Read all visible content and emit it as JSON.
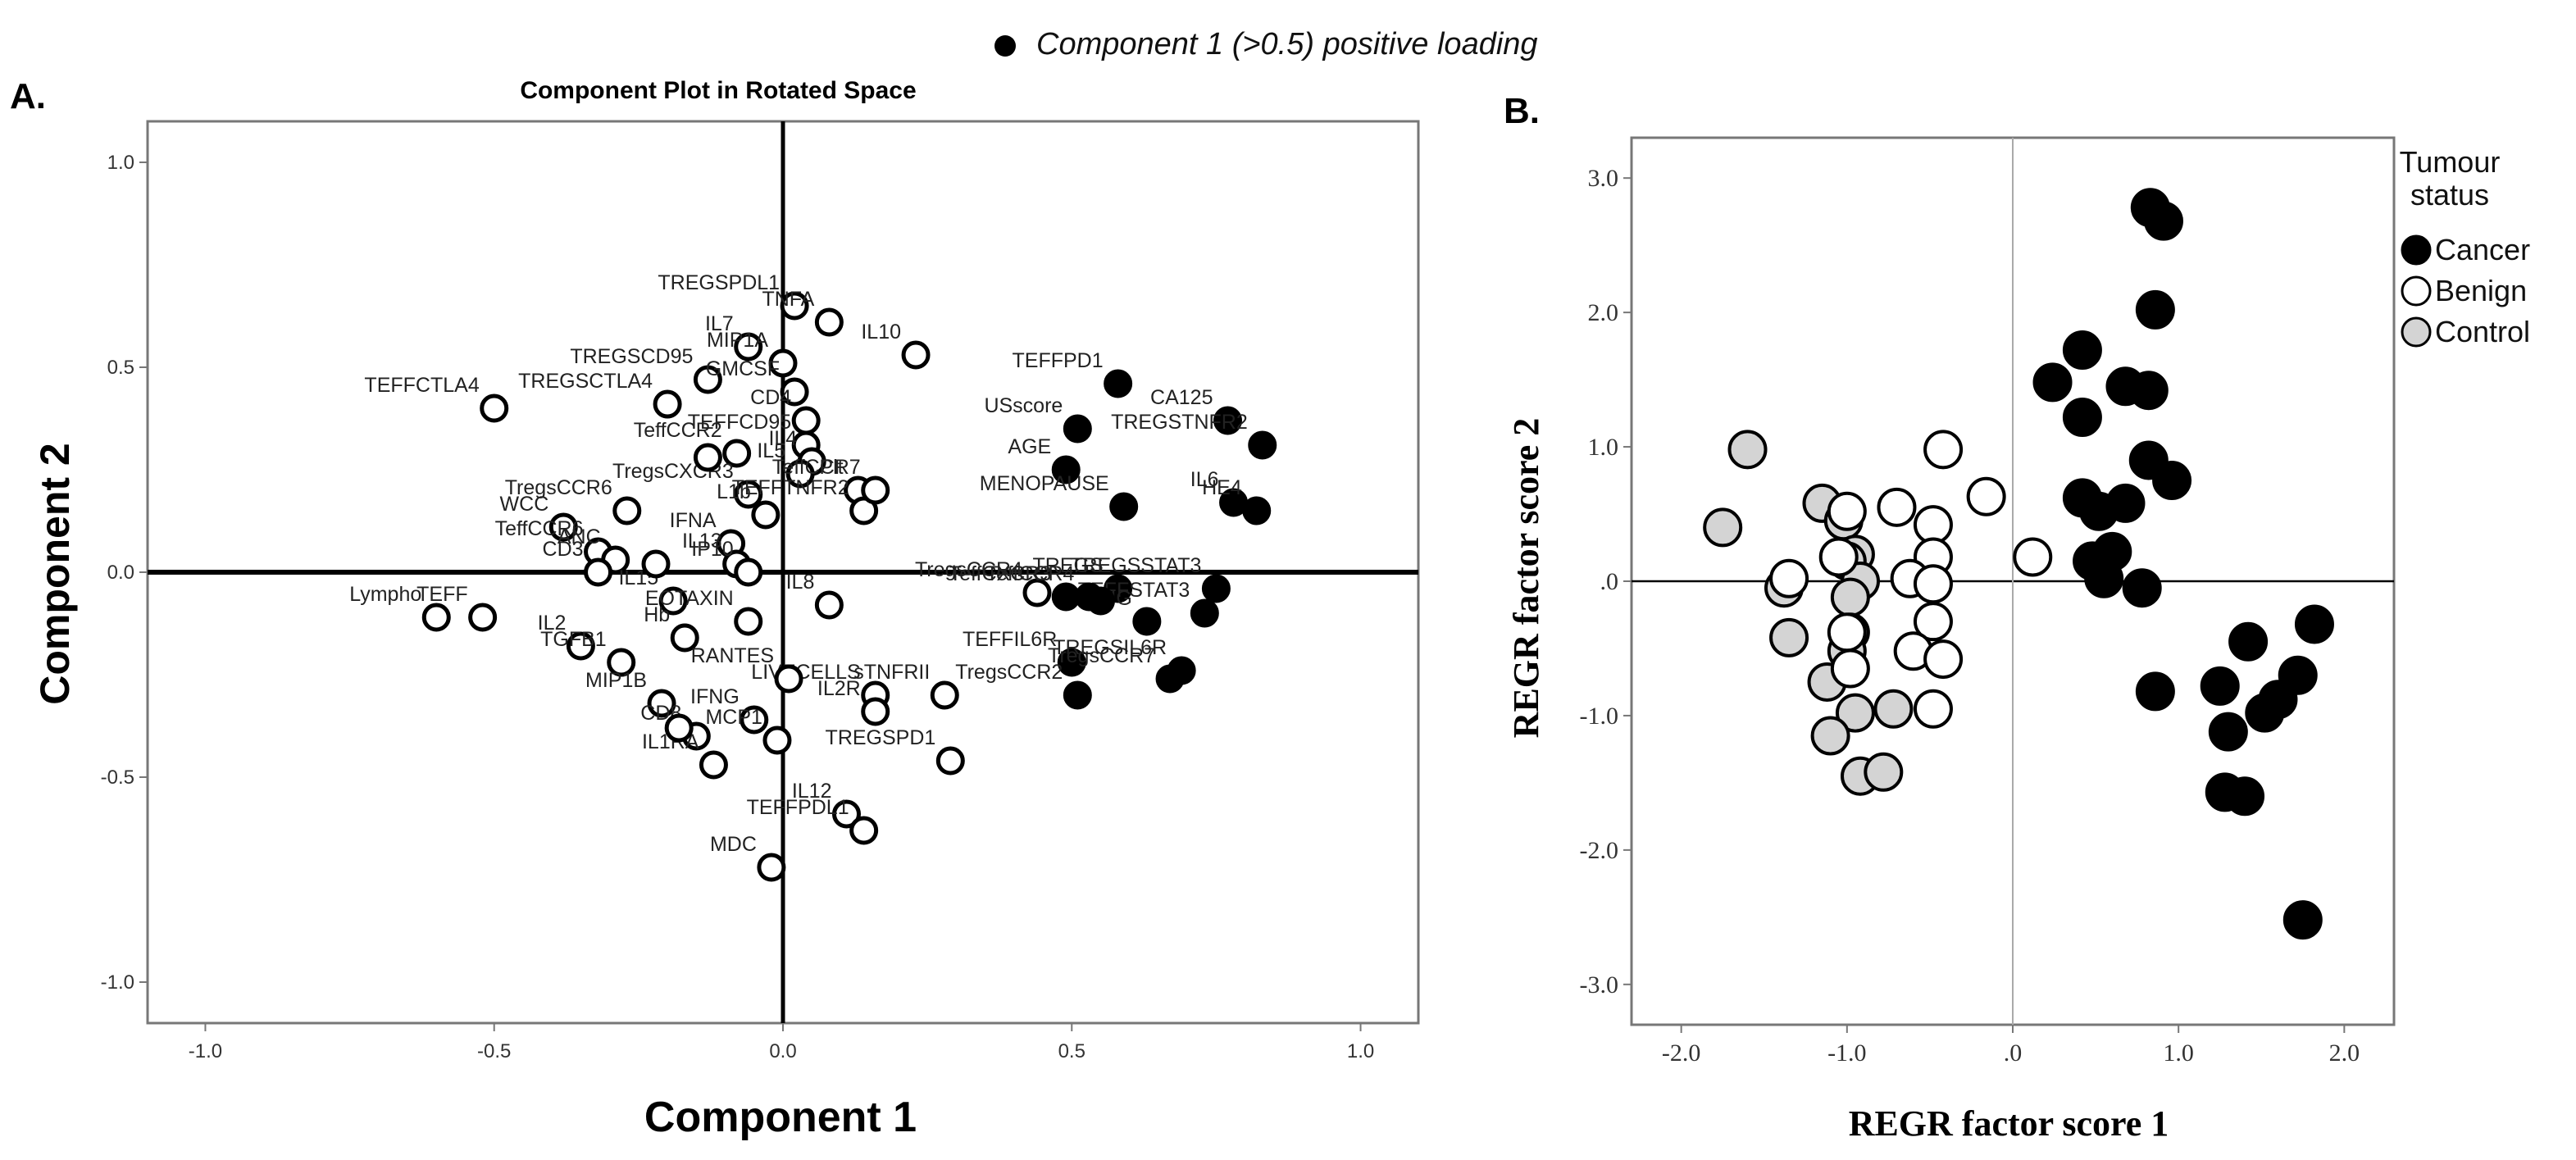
{
  "legend_top": {
    "text": "Component 1  (>0.5) positive loading"
  },
  "chart_data": [
    {
      "type": "scatter",
      "panel_label": "A.",
      "title": "Component Plot in Rotated Space",
      "xlabel": "Component 1",
      "ylabel": "Component 2",
      "xlim": [
        -1.1,
        1.1
      ],
      "ylim": [
        -1.1,
        1.1
      ],
      "xticks": [
        -1.0,
        -0.5,
        0.0,
        0.5,
        1.0
      ],
      "xtick_labels": [
        "-1.0",
        "-0.5",
        "0.0",
        "0.5",
        "1.0"
      ],
      "yticks": [
        -1.0,
        -0.5,
        0.0,
        0.5,
        1.0
      ],
      "ytick_labels": [
        "-1.0",
        "-0.5",
        "0.0",
        "0.5",
        "1.0"
      ],
      "points": [
        {
          "label": "TREGSPDL1",
          "x": 0.02,
          "y": 0.65,
          "filled": false
        },
        {
          "label": "TNFA",
          "x": 0.08,
          "y": 0.61,
          "filled": false
        },
        {
          "label": "IL10",
          "x": 0.23,
          "y": 0.53,
          "filled": false
        },
        {
          "label": "IL7",
          "x": -0.06,
          "y": 0.55,
          "filled": false
        },
        {
          "label": "MIP1A",
          "x": 0.0,
          "y": 0.51,
          "filled": false
        },
        {
          "label": "TREGSCD95",
          "x": -0.13,
          "y": 0.47,
          "filled": false
        },
        {
          "label": "GMCSF",
          "x": 0.02,
          "y": 0.44,
          "filled": false
        },
        {
          "label": "TEFFCTLA4",
          "x": -0.5,
          "y": 0.4,
          "filled": false
        },
        {
          "label": "TREGSCTLA4",
          "x": -0.2,
          "y": 0.41,
          "filled": false
        },
        {
          "label": "CD4",
          "x": 0.04,
          "y": 0.37,
          "filled": false
        },
        {
          "label": "TEFFCD95",
          "x": 0.04,
          "y": 0.31,
          "filled": false
        },
        {
          "label": "TeffCCR2",
          "x": -0.08,
          "y": 0.29,
          "filled": false
        },
        {
          "label": "IL4",
          "x": 0.05,
          "y": 0.27,
          "filled": false
        },
        {
          "label": "IL5",
          "x": 0.03,
          "y": 0.24,
          "filled": false
        },
        {
          "label": "Plt",
          "x": 0.13,
          "y": 0.2,
          "filled": false
        },
        {
          "label": "TregsCXCR3",
          "x": -0.06,
          "y": 0.19,
          "filled": false
        },
        {
          "label": "TregsCCR6",
          "x": -0.27,
          "y": 0.15,
          "filled": false
        },
        {
          "label": "L1b",
          "x": -0.03,
          "y": 0.14,
          "filled": false
        },
        {
          "label": "TEFFTNFR2",
          "x": 0.14,
          "y": 0.15,
          "filled": false
        },
        {
          "label": "TeffCCR7",
          "x": 0.16,
          "y": 0.2,
          "filled": false
        },
        {
          "label": "WCC",
          "x": -0.38,
          "y": 0.11,
          "filled": false
        },
        {
          "label": "IFNA",
          "x": -0.09,
          "y": 0.07,
          "filled": false
        },
        {
          "label": "TeffCCR6",
          "x": -0.32,
          "y": 0.05,
          "filled": false
        },
        {
          "label": "ANC",
          "x": -0.29,
          "y": 0.03,
          "filled": false
        },
        {
          "label": "IL13",
          "x": -0.08,
          "y": 0.02,
          "filled": false
        },
        {
          "label": "IP10",
          "x": -0.06,
          "y": 0.0,
          "filled": false
        },
        {
          "label": "Lympho",
          "x": -0.6,
          "y": -0.11,
          "filled": false
        },
        {
          "label": "TEFF",
          "x": -0.52,
          "y": -0.11,
          "filled": false
        },
        {
          "label": "CD3",
          "x": -0.32,
          "y": 0.0,
          "filled": false
        },
        {
          "label": "IL2",
          "x": -0.35,
          "y": -0.18,
          "filled": false
        },
        {
          "label": "IL15",
          "x": -0.19,
          "y": -0.07,
          "filled": false
        },
        {
          "label": "Hb",
          "x": -0.17,
          "y": -0.16,
          "filled": false
        },
        {
          "label": "IL8",
          "x": 0.08,
          "y": -0.08,
          "filled": false
        },
        {
          "label": "EOTAXIN",
          "x": -0.06,
          "y": -0.12,
          "filled": false
        },
        {
          "label": "TGFB1",
          "x": -0.28,
          "y": -0.22,
          "filled": false
        },
        {
          "label": "LIVECELLS",
          "x": 0.16,
          "y": -0.3,
          "filled": false
        },
        {
          "label": "MIP1B",
          "x": -0.21,
          "y": -0.32,
          "filled": false
        },
        {
          "label": "CD8",
          "x": -0.15,
          "y": -0.4,
          "filled": false
        },
        {
          "label": "RANTES",
          "x": 0.01,
          "y": -0.26,
          "filled": false
        },
        {
          "label": "IL2R",
          "x": 0.16,
          "y": -0.34,
          "filled": false
        },
        {
          "label": "IL1RA",
          "x": -0.12,
          "y": -0.47,
          "filled": false
        },
        {
          "label": "IFNG",
          "x": -0.05,
          "y": -0.36,
          "filled": false
        },
        {
          "label": "MCP1",
          "x": -0.01,
          "y": -0.41,
          "filled": false
        },
        {
          "label": "sTNFRII",
          "x": 0.28,
          "y": -0.3,
          "filled": false
        },
        {
          "label": "TREGSPD1",
          "x": 0.29,
          "y": -0.46,
          "filled": false
        },
        {
          "label": "IL12",
          "x": 0.11,
          "y": -0.59,
          "filled": false
        },
        {
          "label": "MDC",
          "x": -0.02,
          "y": -0.72,
          "filled": false
        },
        {
          "label": "TEFFPDL1",
          "x": 0.14,
          "y": -0.63,
          "filled": false
        },
        {
          "label": "TregsCCR4",
          "x": 0.44,
          "y": -0.05,
          "filled": false
        },
        {
          "label": "",
          "x": -0.13,
          "y": 0.28,
          "filled": false
        },
        {
          "label": "",
          "x": -0.22,
          "y": 0.02,
          "filled": false
        },
        {
          "label": "",
          "x": -0.18,
          "y": -0.38,
          "filled": false
        },
        {
          "label": "TEFFPD1",
          "x": 0.58,
          "y": 0.46,
          "filled": true
        },
        {
          "label": "CA125",
          "x": 0.77,
          "y": 0.37,
          "filled": true
        },
        {
          "label": "USscore",
          "x": 0.51,
          "y": 0.35,
          "filled": true
        },
        {
          "label": "AGE",
          "x": 0.49,
          "y": 0.25,
          "filled": true
        },
        {
          "label": "MENOPAUSE",
          "x": 0.59,
          "y": 0.16,
          "filled": true
        },
        {
          "label": "TREGSTNFR2",
          "x": 0.83,
          "y": 0.31,
          "filled": true
        },
        {
          "label": "IL6",
          "x": 0.78,
          "y": 0.17,
          "filled": true
        },
        {
          "label": "HE4",
          "x": 0.82,
          "y": 0.15,
          "filled": true
        },
        {
          "label": "TeffCXCR3",
          "x": 0.49,
          "y": -0.06,
          "filled": true
        },
        {
          "label": "TREGS",
          "x": 0.58,
          "y": -0.04,
          "filled": true
        },
        {
          "label": "TREGSSTAT3",
          "x": 0.75,
          "y": -0.04,
          "filled": true
        },
        {
          "label": "TEFFSTAT3",
          "x": 0.73,
          "y": -0.1,
          "filled": true
        },
        {
          "label": "TeffCCR4",
          "x": 0.53,
          "y": -0.06,
          "filled": true
        },
        {
          "label": "MIG",
          "x": 0.63,
          "y": -0.12,
          "filled": true
        },
        {
          "label": "TEFFIL6R",
          "x": 0.5,
          "y": -0.22,
          "filled": true
        },
        {
          "label": "TregsCCR2",
          "x": 0.51,
          "y": -0.3,
          "filled": true
        },
        {
          "label": "TREGSIL6R",
          "x": 0.69,
          "y": -0.24,
          "filled": true
        },
        {
          "label": "TregsCCR7",
          "x": 0.67,
          "y": -0.26,
          "filled": true
        },
        {
          "label": "",
          "x": 0.55,
          "y": -0.07,
          "filled": true
        }
      ]
    },
    {
      "type": "scatter",
      "panel_label": "B.",
      "xlabel": "REGR factor score   1",
      "ylabel": "REGR factor score   2",
      "xlim": [
        -2.3,
        2.3
      ],
      "ylim": [
        -3.3,
        3.3
      ],
      "xticks": [
        -2.0,
        -1.0,
        0.0,
        1.0,
        2.0
      ],
      "xtick_labels": [
        "-2.0",
        "-1.0",
        ".0",
        "1.0",
        "2.0"
      ],
      "yticks": [
        3.0,
        2.0,
        1.0,
        0.0,
        -1.0,
        -2.0,
        -3.0
      ],
      "ytick_labels": [
        "3.0",
        "2.0",
        "1.0",
        ".0",
        "-1.0",
        "-2.0",
        "-3.0"
      ],
      "legend": {
        "title_line1": "Tumour",
        "title_line2": "status",
        "entries": [
          "Cancer",
          "Benign",
          "Control"
        ]
      },
      "series": [
        {
          "name": "Cancer",
          "points": [
            [
              0.83,
              2.78
            ],
            [
              0.91,
              2.68
            ],
            [
              0.86,
              2.02
            ],
            [
              0.24,
              1.48
            ],
            [
              0.42,
              1.72
            ],
            [
              0.68,
              1.45
            ],
            [
              0.82,
              1.42
            ],
            [
              0.42,
              1.22
            ],
            [
              0.82,
              0.9
            ],
            [
              0.96,
              0.75
            ],
            [
              0.42,
              0.62
            ],
            [
              0.52,
              0.52
            ],
            [
              0.68,
              0.58
            ],
            [
              0.48,
              0.15
            ],
            [
              0.6,
              0.22
            ],
            [
              0.55,
              0.02
            ],
            [
              0.78,
              -0.05
            ],
            [
              0.86,
              -0.82
            ],
            [
              1.82,
              -0.32
            ],
            [
              1.42,
              -0.45
            ],
            [
              1.25,
              -0.78
            ],
            [
              1.72,
              -0.7
            ],
            [
              1.3,
              -1.12
            ],
            [
              1.6,
              -0.88
            ],
            [
              1.52,
              -0.98
            ],
            [
              1.28,
              -1.57
            ],
            [
              1.4,
              -1.6
            ],
            [
              1.75,
              -2.52
            ]
          ]
        },
        {
          "name": "Benign",
          "points": [
            [
              0.12,
              0.18
            ],
            [
              -0.16,
              0.63
            ],
            [
              -0.42,
              0.98
            ],
            [
              -0.7,
              0.55
            ],
            [
              -0.48,
              0.42
            ],
            [
              -1.0,
              0.52
            ],
            [
              -0.48,
              0.18
            ],
            [
              -0.62,
              0.02
            ],
            [
              -0.48,
              -0.02
            ],
            [
              -0.48,
              -0.3
            ],
            [
              -0.6,
              -0.52
            ],
            [
              -0.42,
              -0.58
            ],
            [
              -0.48,
              -0.95
            ],
            [
              -1.35,
              0.02
            ],
            [
              -1.05,
              0.18
            ],
            [
              -1.0,
              -0.38
            ],
            [
              -0.98,
              -0.65
            ]
          ]
        },
        {
          "name": "Control",
          "points": [
            [
              -1.6,
              0.98
            ],
            [
              -1.75,
              0.4
            ],
            [
              -1.15,
              0.58
            ],
            [
              -1.02,
              0.45
            ],
            [
              -0.95,
              0.2
            ],
            [
              -1.0,
              0.15
            ],
            [
              -0.92,
              0.0
            ],
            [
              -0.98,
              -0.12
            ],
            [
              -1.38,
              -0.05
            ],
            [
              -1.35,
              -0.42
            ],
            [
              -0.98,
              -0.38
            ],
            [
              -1.0,
              -0.52
            ],
            [
              -1.12,
              -0.75
            ],
            [
              -0.95,
              -0.98
            ],
            [
              -0.72,
              -0.95
            ],
            [
              -1.1,
              -1.15
            ],
            [
              -0.92,
              -1.45
            ],
            [
              -0.78,
              -1.42
            ]
          ]
        }
      ]
    }
  ]
}
